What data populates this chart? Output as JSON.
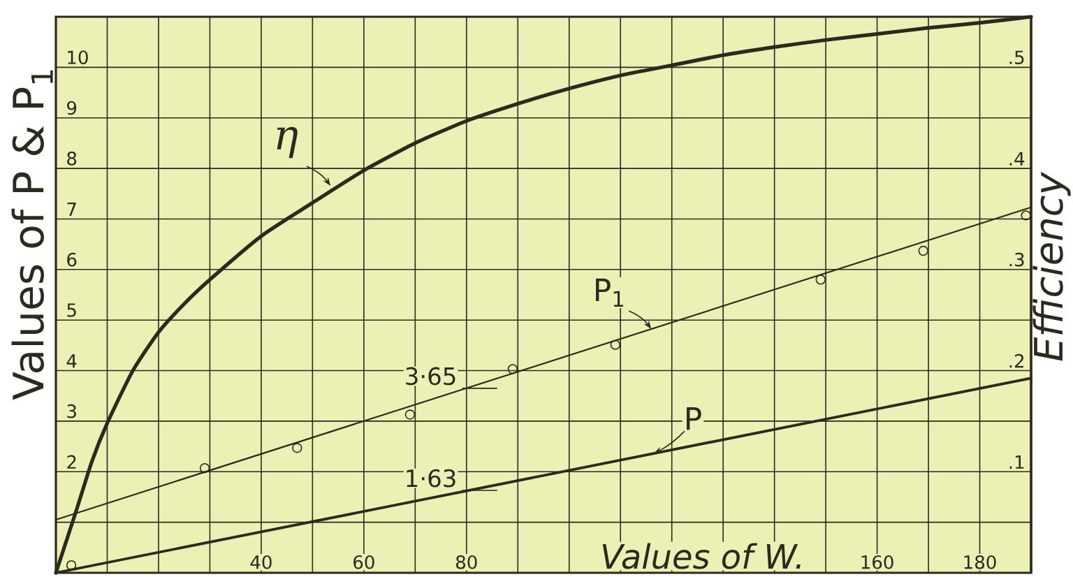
{
  "chart_data": {
    "type": "line",
    "xlabel": "Values of W.",
    "ylabel": "Values of P & P$_{1}$",
    "y2label": "Efficiency",
    "xlim": [
      0,
      190
    ],
    "xticks": [
      {
        "value": 10,
        "label": null
      },
      {
        "value": 20,
        "label": null
      },
      {
        "value": 30,
        "label": null
      },
      40,
      {
        "value": 50,
        "label": null
      },
      60,
      {
        "value": 70,
        "label": null
      },
      80,
      {
        "value": 90,
        "label": null
      },
      {
        "value": 100,
        "label": null
      },
      {
        "value": 110,
        "label": null
      },
      {
        "value": 120,
        "label": null
      },
      {
        "value": 130,
        "label": null
      },
      {
        "value": 140,
        "label": null
      },
      {
        "value": 150,
        "label": null
      },
      160,
      {
        "value": 170,
        "label": null
      },
      180
    ],
    "ylim": [
      0,
      11
    ],
    "yticks": [
      {
        "value": 1,
        "label": null
      },
      2,
      3,
      4,
      5,
      6,
      7,
      8,
      9,
      10
    ],
    "y2lim": [
      0,
      0.55
    ],
    "y2ticks": [
      {
        "value": 0.1,
        "label": ".1"
      },
      {
        "value": 0.2,
        "label": ".2"
      },
      {
        "value": 0.3,
        "label": ".3"
      },
      {
        "value": 0.4,
        "label": ".4"
      },
      {
        "value": 0.5,
        "label": ".5"
      }
    ],
    "grid": true,
    "annotations": [
      {
        "text": "3·65",
        "x": 80,
        "y": 3.65
      },
      {
        "text": "1·63",
        "x": 80,
        "y": 1.63
      }
    ],
    "series": [
      {
        "name": "η",
        "axis": "y2",
        "color": "#2a2a1e",
        "x": [
          0,
          4,
          7,
          10,
          15,
          20,
          25,
          30,
          40,
          50,
          60,
          70,
          80,
          90,
          100,
          110,
          120,
          130,
          140,
          150,
          160,
          170,
          180,
          190
        ],
        "values": [
          0,
          0.062,
          0.11,
          0.148,
          0.2,
          0.238,
          0.266,
          0.29,
          0.333,
          0.366,
          0.398,
          0.425,
          0.447,
          0.464,
          0.479,
          0.492,
          0.502,
          0.512,
          0.52,
          0.527,
          0.533,
          0.539,
          0.544,
          0.55
        ]
      },
      {
        "name": "P$_{1}$",
        "color": "#2a2a1e",
        "x": [
          0,
          190
        ],
        "values": [
          1.05,
          7.23
        ]
      },
      {
        "type": "scatter",
        "marker": "circle",
        "color": "#2a2a1e",
        "x": [
          3,
          29,
          47,
          69,
          89,
          109,
          149,
          169,
          189
        ],
        "values": [
          0.15,
          2.07,
          2.47,
          3.13,
          4.03,
          4.51,
          5.8,
          6.37,
          7.07
        ]
      },
      {
        "name": "P",
        "color": "#2a2a1e",
        "x": [
          0,
          190
        ],
        "values": [
          0,
          3.85
        ]
      }
    ]
  }
}
